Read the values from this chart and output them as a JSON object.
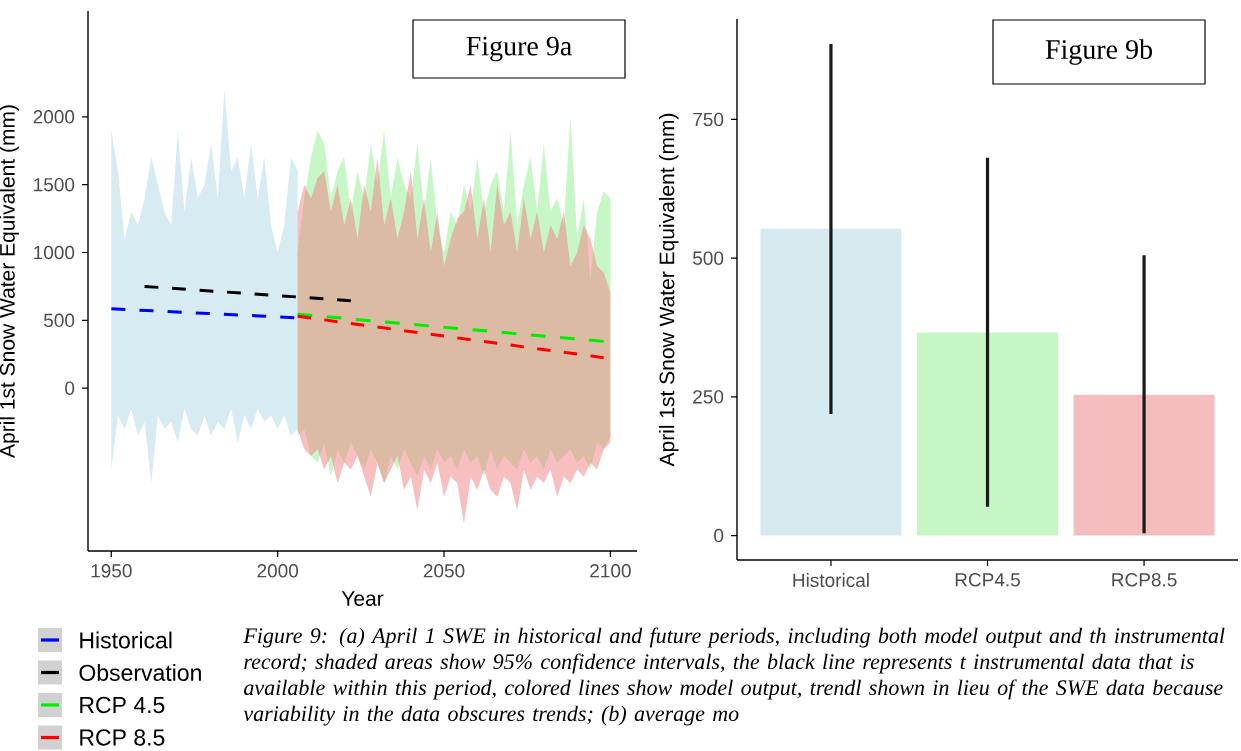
{
  "chart_data": [
    {
      "type": "line",
      "xlabel": "Year",
      "ylabel": "April 1st Snow Water Equivalent (mm)",
      "xlim": [
        1943,
        2108
      ],
      "ylim": [
        -1200,
        2780
      ],
      "xticks": [
        1950,
        2000,
        2050,
        2100
      ],
      "yticks": [
        0,
        500,
        1000,
        1500,
        2000
      ],
      "line_style": "dashed",
      "legend": "bottom left",
      "annotations": [
        "Figure 9a",
        "*Figure 9: (a) April 1 SWE in historical and future periods, including both model output and th instrumental record; shaded areas show 95% confidence intervals, the black line represents t instrumental data that is available within this period, colored lines show model output, trendl shown in lieu of the SWE data because variability in the data obscures trends; (b) average mo*"
      ],
      "series": [
        {
          "type": "area",
          "color": "#add8e6",
          "x": [
            1950,
            1952,
            1954,
            1956,
            1958,
            1960,
            1962,
            1964,
            1966,
            1968,
            1970,
            1972,
            1974,
            1976,
            1978,
            1980,
            1982,
            1984,
            1986,
            1988,
            1990,
            1992,
            1994,
            1996,
            1998,
            2000,
            2002,
            2004,
            2006
          ],
          "values": [
            null,
            null,
            null,
            null,
            null,
            null,
            null,
            null,
            null,
            null,
            null,
            null,
            null,
            null,
            null,
            null,
            null,
            null,
            null,
            null,
            null,
            null,
            null,
            null,
            null,
            null,
            null,
            null,
            null
          ],
          "lower": [
            -600,
            -200,
            -300,
            -150,
            -350,
            -250,
            -700,
            -200,
            -300,
            -250,
            -400,
            -150,
            -300,
            -350,
            -200,
            -350,
            -250,
            -300,
            -150,
            -400,
            -200,
            -300,
            -150,
            -250,
            -200,
            -300,
            -200,
            -350,
            -300
          ],
          "upper": [
            1900,
            1600,
            1100,
            1300,
            1200,
            1400,
            1700,
            1500,
            1300,
            1200,
            1900,
            1300,
            1700,
            1400,
            1500,
            1800,
            1400,
            2200,
            1600,
            1700,
            1400,
            1800,
            1400,
            1700,
            1200,
            1000,
            1200,
            1700,
            1600
          ]
        },
        {
          "type": "area",
          "color": "#90ee90",
          "x": [
            2006,
            2008,
            2010,
            2012,
            2014,
            2016,
            2018,
            2020,
            2022,
            2024,
            2026,
            2028,
            2030,
            2032,
            2034,
            2036,
            2038,
            2040,
            2042,
            2044,
            2046,
            2048,
            2050,
            2052,
            2054,
            2056,
            2058,
            2060,
            2062,
            2064,
            2066,
            2068,
            2070,
            2072,
            2074,
            2076,
            2078,
            2080,
            2082,
            2084,
            2086,
            2088,
            2090,
            2092,
            2094,
            2096,
            2098,
            2100
          ],
          "values": [
            null,
            null,
            null,
            null,
            null,
            null,
            null,
            null,
            null,
            null,
            null,
            null,
            null,
            null,
            null,
            null,
            null,
            null,
            null,
            null,
            null,
            null,
            null,
            null,
            null,
            null,
            null,
            null,
            null,
            null,
            null,
            null,
            null,
            null,
            null,
            null,
            null,
            null,
            null,
            null,
            null,
            null,
            null,
            null,
            null,
            null,
            null,
            null
          ],
          "lower": [
            -350,
            -300,
            -500,
            -550,
            -400,
            -650,
            -450,
            -550,
            -400,
            -500,
            -600,
            -450,
            -550,
            -700,
            -500,
            -600,
            -450,
            -550,
            -650,
            -500,
            -600,
            -450,
            -550,
            -500,
            -600,
            -450,
            -550,
            -500,
            -650,
            -450,
            -600,
            -500,
            -550,
            -600,
            -450,
            -550,
            -500,
            -600,
            -450,
            -550,
            -500,
            -450,
            -550,
            -500,
            -600,
            -400,
            -450,
            -350
          ],
          "upper": [
            1000,
            1400,
            1700,
            1900,
            1800,
            1400,
            1600,
            1700,
            1300,
            1600,
            1400,
            1800,
            1500,
            1900,
            1400,
            1700,
            1500,
            1400,
            1800,
            1300,
            1700,
            1200,
            1000,
            1300,
            1200,
            1500,
            1300,
            1700,
            1300,
            1500,
            1600,
            1300,
            1900,
            1200,
            1500,
            1700,
            1300,
            1800,
            1300,
            1400,
            1200,
            2000,
            1100,
            1400,
            800,
            1300,
            1450,
            1400
          ]
        },
        {
          "type": "area",
          "color": "#f08080",
          "x": [
            2006,
            2008,
            2010,
            2012,
            2014,
            2016,
            2018,
            2020,
            2022,
            2024,
            2026,
            2028,
            2030,
            2032,
            2034,
            2036,
            2038,
            2040,
            2042,
            2044,
            2046,
            2048,
            2050,
            2052,
            2054,
            2056,
            2058,
            2060,
            2062,
            2064,
            2066,
            2068,
            2070,
            2072,
            2074,
            2076,
            2078,
            2080,
            2082,
            2084,
            2086,
            2088,
            2090,
            2092,
            2094,
            2096,
            2098,
            2100
          ],
          "values": [
            null,
            null,
            null,
            null,
            null,
            null,
            null,
            null,
            null,
            null,
            null,
            null,
            null,
            null,
            null,
            null,
            null,
            null,
            null,
            null,
            null,
            null,
            null,
            null,
            null,
            null,
            null,
            null,
            null,
            null,
            null,
            null,
            null,
            null,
            null,
            null,
            null,
            null,
            null,
            null,
            null,
            null,
            null,
            null,
            null,
            null,
            null,
            null
          ],
          "lower": [
            -300,
            -450,
            -500,
            -450,
            -600,
            -500,
            -700,
            -550,
            -600,
            -500,
            -650,
            -800,
            -550,
            -700,
            -600,
            -500,
            -750,
            -650,
            -900,
            -600,
            -700,
            -550,
            -800,
            -650,
            -700,
            -1000,
            -650,
            -750,
            -600,
            -750,
            -800,
            -650,
            -700,
            -900,
            -600,
            -750,
            -650,
            -700,
            -600,
            -800,
            -650,
            -700,
            -600,
            -650,
            -550,
            -600,
            -450,
            -400
          ],
          "upper": [
            1300,
            1500,
            1400,
            1550,
            1600,
            1300,
            1500,
            1200,
            1400,
            1100,
            1500,
            1300,
            1700,
            1200,
            1400,
            1100,
            1300,
            1600,
            1100,
            1400,
            1000,
            1300,
            900,
            1100,
            1250,
            1300,
            1500,
            1100,
            1400,
            1000,
            1500,
            1200,
            1300,
            1000,
            1400,
            1100,
            1300,
            1000,
            1200,
            1100,
            1300,
            900,
            1000,
            1200,
            1100,
            900,
            850,
            700
          ]
        },
        {
          "name": "Historical",
          "color": "#0000ff",
          "x": [
            1950,
            2005
          ],
          "values": [
            585,
            520
          ]
        },
        {
          "name": "Observation",
          "color": "#000000",
          "x": [
            1960,
            2022
          ],
          "values": [
            750,
            645
          ]
        },
        {
          "name": "RCP 4.5",
          "color": "#00ee00",
          "x": [
            2006,
            2098
          ],
          "values": [
            545,
            345
          ]
        },
        {
          "name": "RCP 8.5",
          "color": "#ff0000",
          "x": [
            2006,
            2098
          ],
          "values": [
            530,
            225
          ]
        }
      ]
    },
    {
      "type": "bar",
      "ylabel": "April 1st Snow Water Equivalent (mm)",
      "categories": [
        "Historical",
        "RCP4.5",
        "RCP8.5"
      ],
      "values": [
        553,
        366,
        254
      ],
      "colors": [
        "#d6eaf0",
        "#c6f5c6",
        "#f4bcbc"
      ],
      "errors": [
        [
          219,
          886
        ],
        [
          52,
          681
        ],
        [
          4,
          505
        ]
      ],
      "ylim": [
        -44,
        931
      ],
      "yticks": [
        0,
        250,
        500,
        750
      ],
      "annotations": [
        "Figure 9b"
      ]
    }
  ]
}
